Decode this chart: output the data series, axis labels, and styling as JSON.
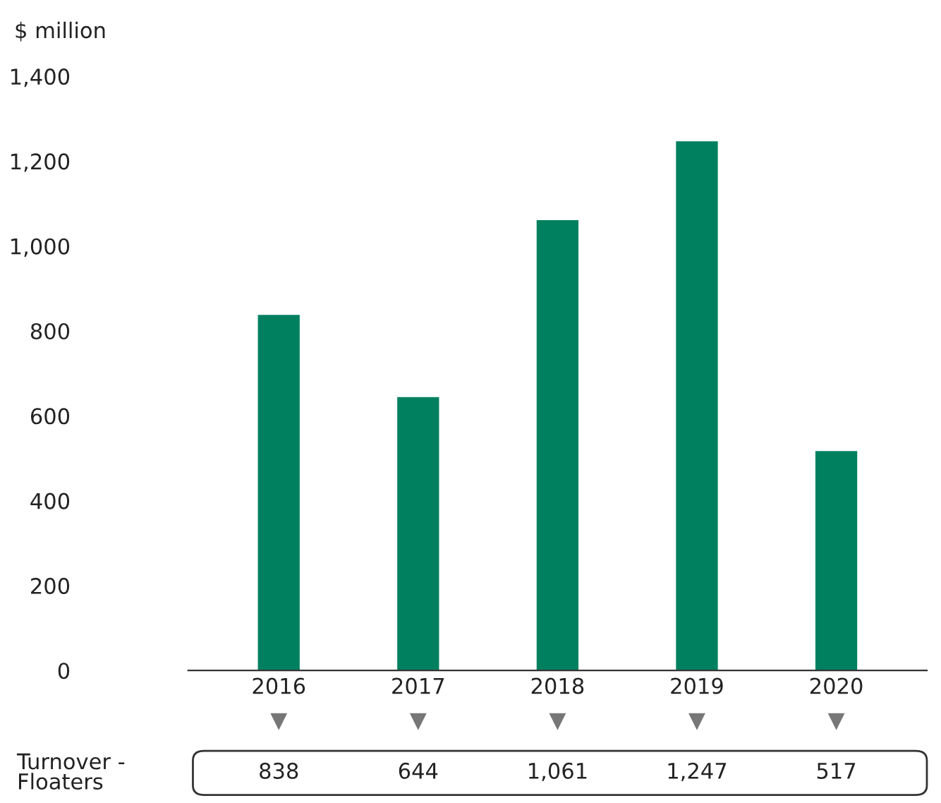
{
  "chart_data": {
    "type": "bar",
    "ylabel": "$ million",
    "categories": [
      "2016",
      "2017",
      "2018",
      "2019",
      "2020"
    ],
    "series": [
      {
        "name": "Turnover - Floaters",
        "color": "#00805f",
        "values": [
          838,
          644,
          1061,
          1247,
          517
        ]
      }
    ],
    "ylim": [
      0,
      1400
    ],
    "yticks": [
      0,
      200,
      400,
      600,
      800,
      {
        "value": 1000,
        "label": "1,000"
      },
      {
        "value": 1200,
        "label": "1,200"
      },
      {
        "value": 1400,
        "label": "1,400"
      }
    ],
    "value_labels": [
      "838",
      "644",
      "1,061",
      "1,247",
      "517"
    ],
    "grid": false,
    "legend": false
  }
}
